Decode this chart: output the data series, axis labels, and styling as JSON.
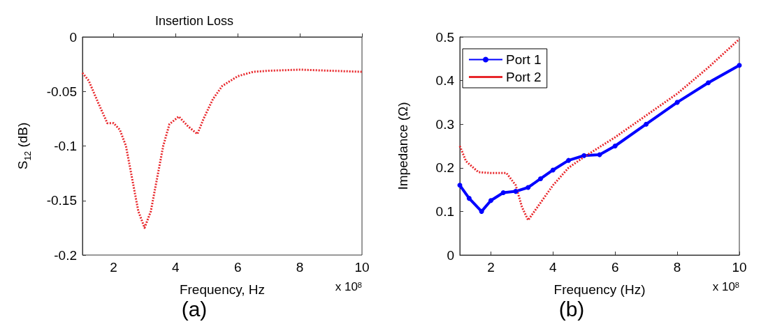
{
  "chart_data": [
    {
      "type": "line",
      "title": "Insertion Loss",
      "xlabel": "Frequency, Hz",
      "ylabel": "S$_{12}$ (dB)",
      "annotations": [
        "x 10$^{8}$",
        "(a)"
      ],
      "xlim": [
        1,
        10
      ],
      "xticks": [
        2,
        4,
        6,
        8,
        10
      ],
      "ylim": [
        -0.2,
        0
      ],
      "yticks": [
        -0.2,
        -0.15,
        -0.1,
        -0.05,
        0
      ],
      "grid": false,
      "legend": false,
      "line_style": "dotted",
      "marker": "none",
      "series": [
        {
          "color": "#e8262a",
          "x": [
            1,
            1.2,
            1.5,
            1.8,
            2.0,
            2.2,
            2.4,
            2.6,
            2.8,
            3.0,
            3.2,
            3.4,
            3.6,
            3.8,
            4.1,
            4.4,
            4.7,
            4.9,
            5.2,
            5.5,
            6.0,
            6.5,
            7,
            8,
            9,
            10
          ],
          "values": [
            -0.033,
            -0.04,
            -0.06,
            -0.079,
            -0.079,
            -0.085,
            -0.1,
            -0.13,
            -0.16,
            -0.175,
            -0.16,
            -0.13,
            -0.1,
            -0.08,
            -0.073,
            -0.082,
            -0.089,
            -0.075,
            -0.057,
            -0.045,
            -0.036,
            -0.032,
            -0.031,
            -0.03,
            -0.031,
            -0.032
          ]
        }
      ]
    },
    {
      "type": "line",
      "xlabel": "Frequency (Hz)",
      "ylabel": "Impedance (Ω)",
      "annotations": [
        "x 10$^{8}$",
        "(b)"
      ],
      "xlim": [
        1,
        10
      ],
      "xticks": [
        2,
        4,
        6,
        8,
        10
      ],
      "ylim": [
        0,
        0.5
      ],
      "yticks": [
        0,
        0.1,
        0.2,
        0.3,
        0.4,
        0.5
      ],
      "grid": false,
      "legend": "top left",
      "series": [
        {
          "name": "Port 1",
          "color": "#0000ff",
          "marker": "circle",
          "line_style": "solid",
          "x": [
            1,
            1.3,
            1.7,
            2.0,
            2.4,
            2.8,
            3.2,
            3.6,
            4,
            4.5,
            5,
            5.5,
            6,
            7,
            8,
            9,
            10
          ],
          "values": [
            0.16,
            0.13,
            0.1,
            0.125,
            0.143,
            0.146,
            0.155,
            0.175,
            0.195,
            0.217,
            0.228,
            0.23,
            0.25,
            0.3,
            0.35,
            0.395,
            0.435
          ]
        },
        {
          "name": "Port 2",
          "color": "#e8262a",
          "marker": "none",
          "line_style": "dotted",
          "x": [
            1,
            1.2,
            1.6,
            2,
            2.5,
            2.8,
            3.0,
            3.2,
            3.5,
            4,
            4.5,
            5,
            6,
            7,
            8,
            9,
            10
          ],
          "values": [
            0.25,
            0.215,
            0.19,
            0.188,
            0.188,
            0.16,
            0.11,
            0.08,
            0.11,
            0.16,
            0.2,
            0.225,
            0.27,
            0.32,
            0.37,
            0.43,
            0.495
          ]
        }
      ]
    }
  ]
}
